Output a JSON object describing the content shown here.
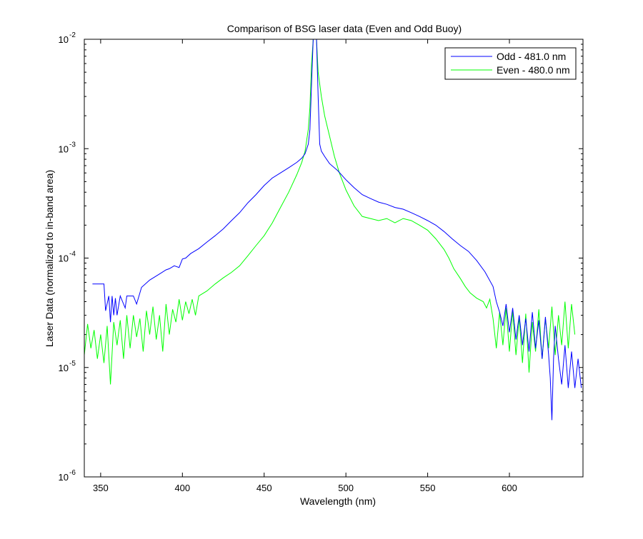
{
  "chart_data": {
    "type": "line",
    "title": "Comparison of BSG laser data (Even and Odd Buoy)",
    "xlabel": "Wavelength (nm)",
    "ylabel": "Laser Data (normalized to in-band area)",
    "xlim": [
      340,
      645
    ],
    "ylim": [
      1e-06,
      0.01
    ],
    "yscale": "log",
    "grid": false,
    "legend_position": "top-right",
    "x_ticks": [
      350,
      400,
      450,
      500,
      550,
      600
    ],
    "x_tick_labels": [
      "350",
      "400",
      "450",
      "500",
      "550",
      "600"
    ],
    "y_ticks": [
      {
        "value": 1e-06,
        "base": "10",
        "exp": "-6"
      },
      {
        "value": 1e-05,
        "base": "10",
        "exp": "-5"
      },
      {
        "value": 0.0001,
        "base": "10",
        "exp": "-4"
      },
      {
        "value": 0.001,
        "base": "10",
        "exp": "-3"
      },
      {
        "value": 0.01,
        "base": "10",
        "exp": "-2"
      }
    ],
    "series": [
      {
        "name": "Odd - 481.0 nm",
        "color": "#0000ff",
        "x": [
          345,
          352,
          353,
          355,
          356,
          357,
          358,
          359,
          360,
          362,
          365,
          366,
          370,
          372,
          375,
          380,
          385,
          390,
          392,
          395,
          398,
          400,
          402,
          405,
          410,
          415,
          420,
          425,
          430,
          435,
          440,
          445,
          450,
          455,
          460,
          465,
          470,
          473,
          475,
          477,
          478,
          479,
          480,
          481,
          482,
          483,
          484,
          485,
          487,
          490,
          495,
          500,
          505,
          510,
          515,
          520,
          525,
          530,
          535,
          540,
          545,
          550,
          555,
          560,
          565,
          570,
          575,
          580,
          585,
          590,
          592,
          594,
          596,
          598,
          600,
          602,
          604,
          606,
          608,
          610,
          612,
          614,
          616,
          618,
          620,
          622,
          624,
          625,
          626,
          627,
          628,
          630,
          632,
          634,
          636,
          638,
          640,
          642,
          644
        ],
        "y": [
          5.8e-05,
          5.8e-05,
          3.3e-05,
          4.5e-05,
          2.6e-05,
          4.5e-05,
          3e-05,
          4.3e-05,
          3e-05,
          4.5e-05,
          3.5e-05,
          4.5e-05,
          4.5e-05,
          3.8e-05,
          5.4e-05,
          6.3e-05,
          7e-05,
          7.8e-05,
          8e-05,
          8.5e-05,
          8.2e-05,
          9.8e-05,
          0.0001,
          0.00011,
          0.000122,
          0.00014,
          0.00016,
          0.000185,
          0.00022,
          0.00026,
          0.00032,
          0.00038,
          0.00046,
          0.00054,
          0.0006,
          0.00067,
          0.00075,
          0.00082,
          0.0009,
          0.0011,
          0.0015,
          0.004,
          0.01,
          0.01,
          0.01,
          0.003,
          0.0011,
          0.00095,
          0.00085,
          0.00073,
          0.00063,
          0.00052,
          0.00044,
          0.00038,
          0.00035,
          0.000325,
          0.00031,
          0.00029,
          0.00028,
          0.00026,
          0.00024,
          0.00022,
          0.0002,
          0.000175,
          0.00015,
          0.00013,
          0.000115,
          9.5e-05,
          7.5e-05,
          5.5e-05,
          4e-05,
          3.2e-05,
          2.4e-05,
          3.8e-05,
          2.1e-05,
          3.5e-05,
          1.8e-05,
          3e-05,
          1.6e-05,
          2.8e-05,
          1.4e-05,
          3.2e-05,
          1.5e-05,
          2.7e-05,
          1.2e-05,
          2.9e-05,
          1.3e-05,
          8e-06,
          3.3e-06,
          1.2e-05,
          2.4e-05,
          1.2e-05,
          7e-06,
          1.6e-05,
          6.5e-06,
          1.4e-05,
          6.5e-06,
          1.2e-05,
          6.5e-06
        ]
      },
      {
        "name": "Even - 480.0 nm",
        "color": "#00ff00",
        "x": [
          340,
          342,
          344,
          346,
          348,
          350,
          352,
          354,
          356,
          358,
          360,
          362,
          364,
          366,
          368,
          370,
          372,
          374,
          376,
          378,
          380,
          382,
          384,
          386,
          388,
          390,
          392,
          394,
          396,
          398,
          400,
          402,
          404,
          406,
          408,
          410,
          415,
          420,
          425,
          430,
          435,
          440,
          445,
          450,
          455,
          460,
          465,
          470,
          473,
          475,
          477,
          478,
          479,
          480,
          481,
          482,
          483,
          485,
          487,
          490,
          493,
          496,
          500,
          505,
          510,
          515,
          520,
          525,
          530,
          535,
          540,
          545,
          550,
          555,
          560,
          563,
          566,
          570,
          573,
          576,
          580,
          584,
          586,
          588,
          590,
          592,
          594,
          596,
          598,
          600,
          602,
          604,
          606,
          608,
          610,
          612,
          614,
          616,
          618,
          620,
          622,
          624,
          626,
          628,
          630,
          632,
          634,
          636,
          638,
          640
        ],
        "y": [
          1.3e-05,
          2.5e-05,
          1.5e-05,
          2.2e-05,
          1.2e-05,
          2e-05,
          1.1e-05,
          2.4e-05,
          7e-06,
          2.6e-05,
          1.6e-05,
          2.7e-05,
          1.2e-05,
          3e-05,
          1.5e-05,
          3e-05,
          1.9e-05,
          2.8e-05,
          1.4e-05,
          3.3e-05,
          2e-05,
          3.6e-05,
          1.8e-05,
          3e-05,
          1.4e-05,
          3.8e-05,
          2e-05,
          3.4e-05,
          2.6e-05,
          4.2e-05,
          2.7e-05,
          4e-05,
          3.1e-05,
          4.2e-05,
          3e-05,
          4.5e-05,
          5e-05,
          5.8e-05,
          6.6e-05,
          7.4e-05,
          8.5e-05,
          0.000105,
          0.00013,
          0.00016,
          0.00021,
          0.00029,
          0.0004,
          0.00058,
          0.00075,
          0.00095,
          0.0015,
          0.0024,
          0.006,
          0.01,
          0.01,
          0.01,
          0.005,
          0.003,
          0.002,
          0.0013,
          0.00085,
          0.0006,
          0.00042,
          0.0003,
          0.00024,
          0.00023,
          0.00022,
          0.00023,
          0.00021,
          0.00023,
          0.00022,
          0.0002,
          0.00018,
          0.00015,
          0.00012,
          0.0001,
          8e-05,
          6.5e-05,
          5.5e-05,
          4.8e-05,
          4.3e-05,
          4e-05,
          3.5e-05,
          4.2e-05,
          2.8e-05,
          1.5e-05,
          3.2e-05,
          1.6e-05,
          3.5e-05,
          1.4e-05,
          3.3e-05,
          1.3e-05,
          2.9e-05,
          1.1e-05,
          3.1e-05,
          9e-06,
          2.6e-05,
          1.4e-05,
          3.4e-05,
          1.2e-05,
          2.8e-05,
          1.5e-05,
          3.6e-05,
          1.3e-05,
          3e-05,
          1.6e-05,
          4e-05,
          1.5e-05,
          3.8e-05,
          2e-05
        ]
      }
    ]
  }
}
